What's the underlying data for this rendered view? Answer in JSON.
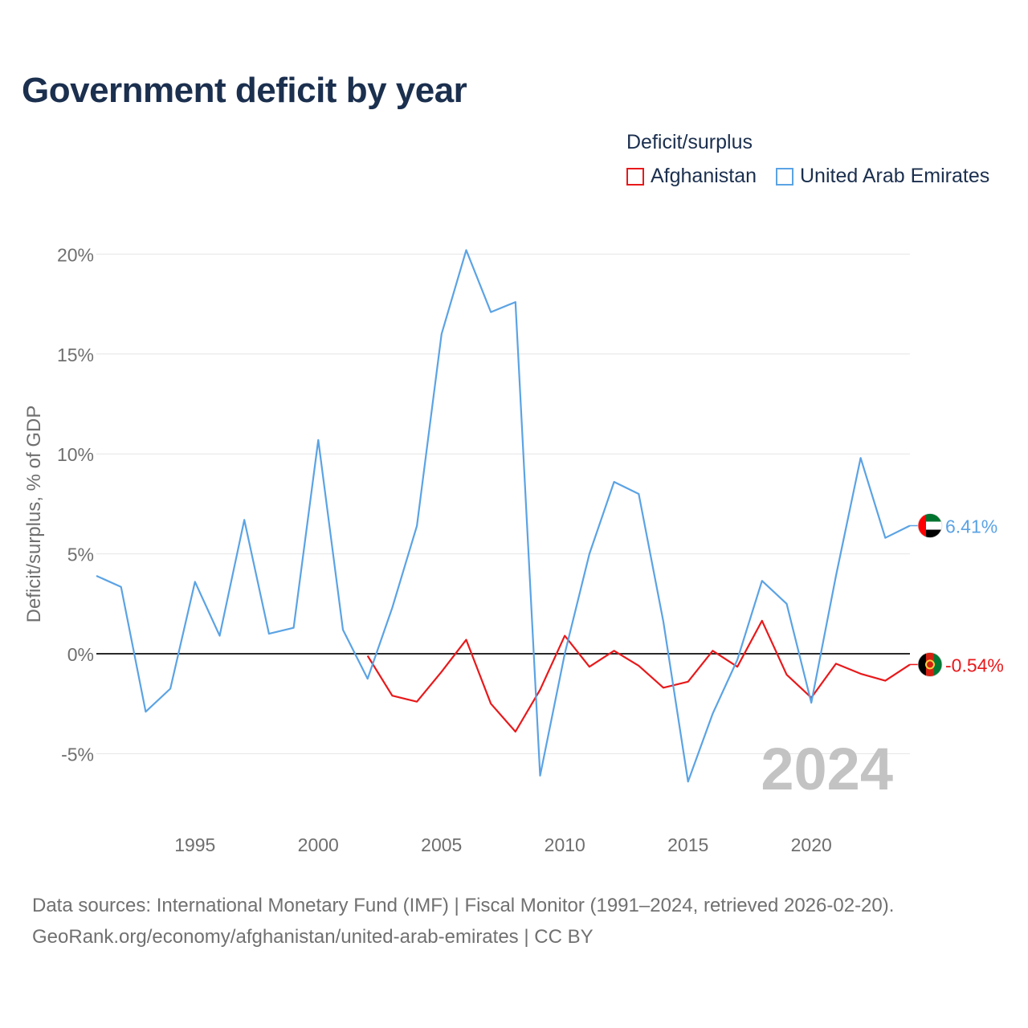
{
  "title": "Government deficit by year",
  "legend": {
    "title": "Deficit/surplus",
    "items": [
      {
        "label": "Afghanistan",
        "color": "#e8191b"
      },
      {
        "label": "United Arab Emirates",
        "color": "#5ba3e4"
      }
    ]
  },
  "watermark_year": "2024",
  "source": {
    "line1": "Data sources: International Monetary Fund (IMF) | Fiscal Monitor (1991–2024, retrieved 2026-02-20).",
    "line2": "GeoRank.org/economy/afghanistan/united-arab-emirates | CC BY"
  },
  "chart_data": {
    "type": "line",
    "title": "Government deficit by year",
    "xlabel": "",
    "ylabel": "Deficit/surplus, % of GDP",
    "xlim": [
      1991,
      2024
    ],
    "ylim": [
      -8,
      22
    ],
    "x_ticks": [
      1995,
      2000,
      2005,
      2010,
      2015,
      2020
    ],
    "y_ticks": [
      -5,
      0,
      5,
      10,
      15,
      20
    ],
    "y_tick_labels": [
      "-5%",
      "0%",
      "5%",
      "10%",
      "15%",
      "20%"
    ],
    "zero_line": true,
    "grid": true,
    "legend_position": "top-right",
    "series": [
      {
        "name": "Afghanistan",
        "color": "#e8191b",
        "flag": "afghanistan-flag",
        "end_label": "-0.54%",
        "x": [
          2002,
          2003,
          2004,
          2005,
          2006,
          2007,
          2008,
          2009,
          2010,
          2011,
          2012,
          2013,
          2014,
          2015,
          2016,
          2017,
          2018,
          2019,
          2020,
          2021,
          2022,
          2023,
          2024
        ],
        "values": [
          -0.1,
          -2.1,
          -2.4,
          -0.9,
          0.7,
          -2.5,
          -3.9,
          -1.8,
          0.9,
          -0.65,
          0.15,
          -0.6,
          -1.7,
          -1.4,
          0.15,
          -0.65,
          1.65,
          -1.05,
          -2.2,
          -0.5,
          -1.0,
          -1.35,
          -0.54
        ]
      },
      {
        "name": "United Arab Emirates",
        "color": "#5ba3e4",
        "flag": "uae-flag",
        "end_label": "6.41%",
        "x": [
          1991,
          1992,
          1993,
          1994,
          1995,
          1996,
          1997,
          1998,
          1999,
          2000,
          2001,
          2002,
          2003,
          2004,
          2005,
          2006,
          2007,
          2008,
          2009,
          2010,
          2011,
          2012,
          2013,
          2014,
          2015,
          2016,
          2017,
          2018,
          2019,
          2020,
          2021,
          2022,
          2023,
          2024
        ],
        "values": [
          3.9,
          3.35,
          -2.9,
          -1.75,
          3.6,
          0.9,
          6.7,
          1.0,
          1.3,
          10.7,
          1.2,
          -1.25,
          2.3,
          6.4,
          16.0,
          20.2,
          17.1,
          17.6,
          -6.1,
          0.0,
          5.0,
          8.6,
          8.0,
          1.6,
          -6.4,
          -3.0,
          -0.3,
          3.65,
          2.5,
          -2.45,
          3.9,
          9.8,
          5.8,
          6.41
        ]
      }
    ]
  }
}
